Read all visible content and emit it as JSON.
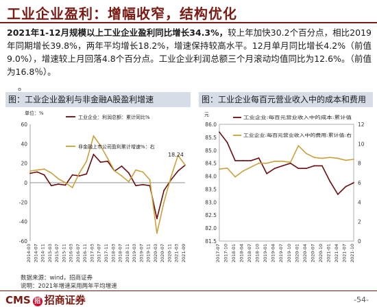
{
  "header": {
    "title": "工业企业盈利：增幅收窄，结构优化"
  },
  "summary": {
    "p1_bold": "2021年1-12月规模以上工业企业盈利同比增长34.3%，",
    "p1_rest": "较上年加快30.2个百分点，相比2019年同期增长39.8%，两年平均增长18.2%，增速保持较高水平。12月单月同比增长4.2%（前值9.0%），增速较上月回落4.8个百分点。工业企业利润总额三个月滚动均值同比为12.6%。（前值为16.8％）。",
    "bullet": "。"
  },
  "panels": {
    "left_title": "图：工业企业盈利与非金融A股盈利增速",
    "right_title": "图：工业企业每百元营业收入中的成本和费用"
  },
  "footer": {
    "source": "数据来源：wind，招商证券",
    "note": "说明：2021年增速采用两年平均增速",
    "brand_latin": "CMS",
    "brand_mark": "招",
    "brand_cn": "招商证券",
    "page": "-54-"
  },
  "colors": {
    "brand": "#7a1a12",
    "series_dark": "#6b0a0a",
    "series_gold": "#c9a13b",
    "panel_header": "#d6dde6"
  },
  "chart_data": [
    {
      "type": "line",
      "unit": "单位：%",
      "x_labels": [
        "2014-03",
        "2014-07",
        "2014-11",
        "2015-03",
        "2015-07",
        "2015-11",
        "2016-03",
        "2016-07",
        "2016-11",
        "2017-03",
        "2017-07",
        "2017-11",
        "2018-03",
        "2018-07",
        "2018-11",
        "2019-03",
        "2019-07",
        "2019-11",
        "2020-03",
        "2020-07",
        "2020-11",
        "2021-03",
        "2021-09"
      ],
      "ylim": [
        -60,
        60
      ],
      "yticks": [
        60,
        40,
        20,
        0,
        -20,
        -40,
        -60
      ],
      "annotation": "18.24",
      "series": [
        {
          "name": "工业企业：利润总额：累计同比%",
          "axis": "left",
          "values": [
            9.6,
            11,
            8,
            -3,
            -1.5,
            -2.5,
            8,
            7,
            9,
            29,
            21,
            22,
            12,
            17,
            10,
            -3,
            -2,
            -3,
            -37,
            -8,
            3,
            12,
            18
          ]
        },
        {
          "name": "非金融上市公司盈利累计增速%：右",
          "axis": "left",
          "values": [
            12,
            13,
            14,
            10,
            4,
            0,
            -5,
            10,
            22,
            48,
            38,
            25,
            12,
            7,
            1,
            13,
            11,
            3,
            -52,
            -20,
            6,
            28,
            18.24
          ]
        }
      ]
    },
    {
      "type": "line",
      "unit": "元",
      "x_labels": [
        "2017-07",
        "2017-10",
        "2018-01",
        "2018-04",
        "2018-07",
        "2018-10",
        "2019-01",
        "2019-04",
        "2019-07",
        "2019-10",
        "2020-01",
        "2020-04",
        "2020-07",
        "2020-10",
        "2021-01",
        "2021-04",
        "2021-07",
        "2021-10"
      ],
      "y_left": {
        "ylim": [
          81.5,
          86.0
        ],
        "ticks": [
          86.0,
          85.5,
          85.0,
          84.5,
          84.0,
          83.5,
          83.0,
          82.5,
          82.0,
          81.5
        ]
      },
      "y_right": {
        "ylim": [
          0,
          12
        ],
        "ticks": [
          12,
          10,
          8,
          6,
          4,
          2,
          0
        ]
      },
      "series": [
        {
          "name": "工业企业:每百元营业收入中的成本:累计值",
          "axis": "left",
          "values": [
            85.7,
            85.3,
            84.6,
            84.6,
            84.6,
            84.7,
            84.1,
            84.3,
            84.4,
            84.5,
            84.3,
            84.3,
            84.4,
            84.4,
            83.8,
            83.3,
            83.6,
            83.75
          ]
        },
        {
          "name": "工业企业:每百元营业收入中的费用:累计值:右",
          "axis": "right",
          "values": [
            7.4,
            7.5,
            6.6,
            7.2,
            7.6,
            8.0,
            8.0,
            8.2,
            8.2,
            8.1,
            9.8,
            9.0,
            8.6,
            8.5,
            8.6,
            8.5,
            8.3,
            8.4
          ]
        }
      ]
    }
  ]
}
